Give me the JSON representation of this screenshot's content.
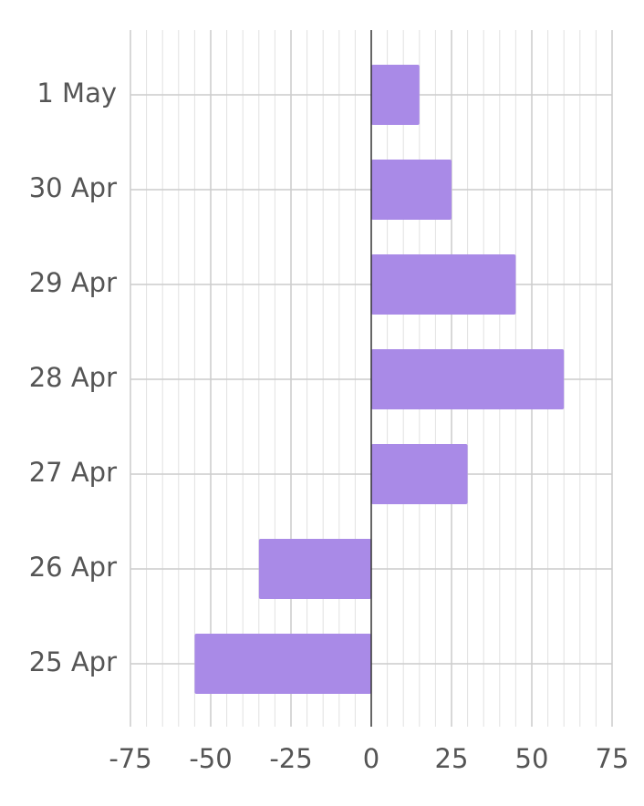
{
  "chart_data": {
    "type": "bar",
    "orientation": "horizontal",
    "categories": [
      "1 May",
      "30 Apr",
      "29 Apr",
      "28 Apr",
      "27 Apr",
      "26 Apr",
      "25 Apr"
    ],
    "values": [
      15,
      25,
      45,
      60,
      30,
      -35,
      -55
    ],
    "title": "",
    "xlabel": "",
    "ylabel": "",
    "xlim": [
      -75,
      75
    ],
    "x_ticks": [
      "-75",
      "-50",
      "-25",
      "0",
      "25",
      "50",
      "75"
    ],
    "x_tick_values": [
      -75,
      -50,
      -25,
      0,
      25,
      50,
      75
    ],
    "minor_grid_step": 5,
    "grid": true,
    "legend": "none",
    "colors": {
      "bar": "#a98ae7",
      "major_grid": "#cccccc",
      "minor_grid": "#e2e2e2",
      "zero_line": "#333333",
      "text": "#555555"
    }
  }
}
